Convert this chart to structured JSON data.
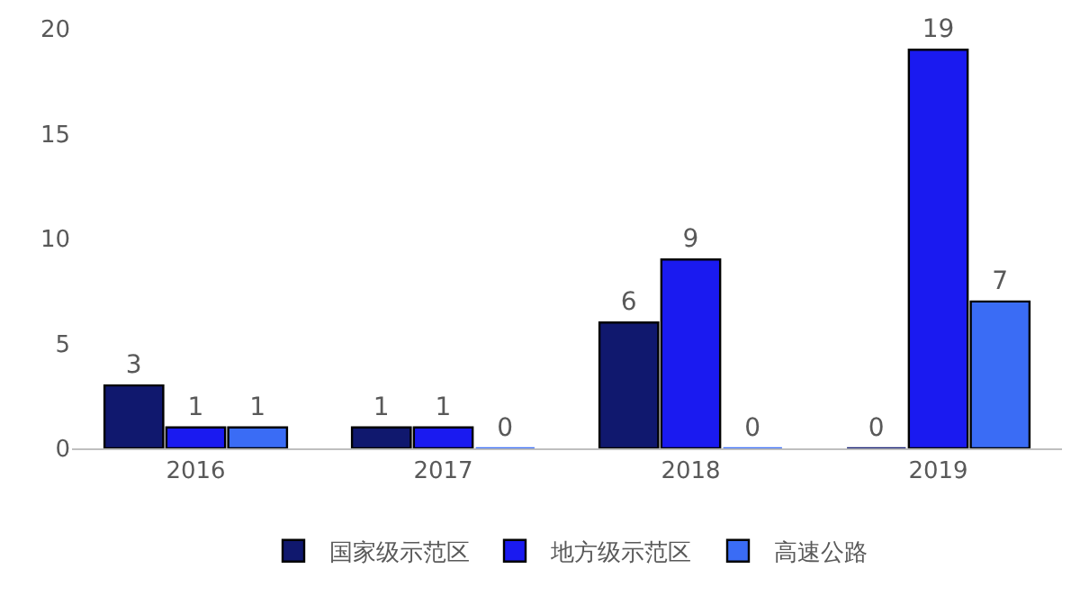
{
  "chart_data": {
    "type": "bar",
    "categories": [
      "2016",
      "2017",
      "2018",
      "2019"
    ],
    "series": [
      {
        "name": "国家级示范区",
        "color": "#10186e",
        "values": [
          3,
          1,
          6,
          0
        ]
      },
      {
        "name": "地方级示范区",
        "color": "#1a1af0",
        "values": [
          1,
          1,
          9,
          19
        ]
      },
      {
        "name": "高速公路",
        "color": "#3a6cf5",
        "values": [
          1,
          0,
          0,
          7
        ]
      }
    ],
    "ylim": [
      0,
      20
    ],
    "yticks": [
      0,
      5,
      10,
      15,
      20
    ],
    "grid": false,
    "legend": "bottom",
    "data_labels": true
  }
}
